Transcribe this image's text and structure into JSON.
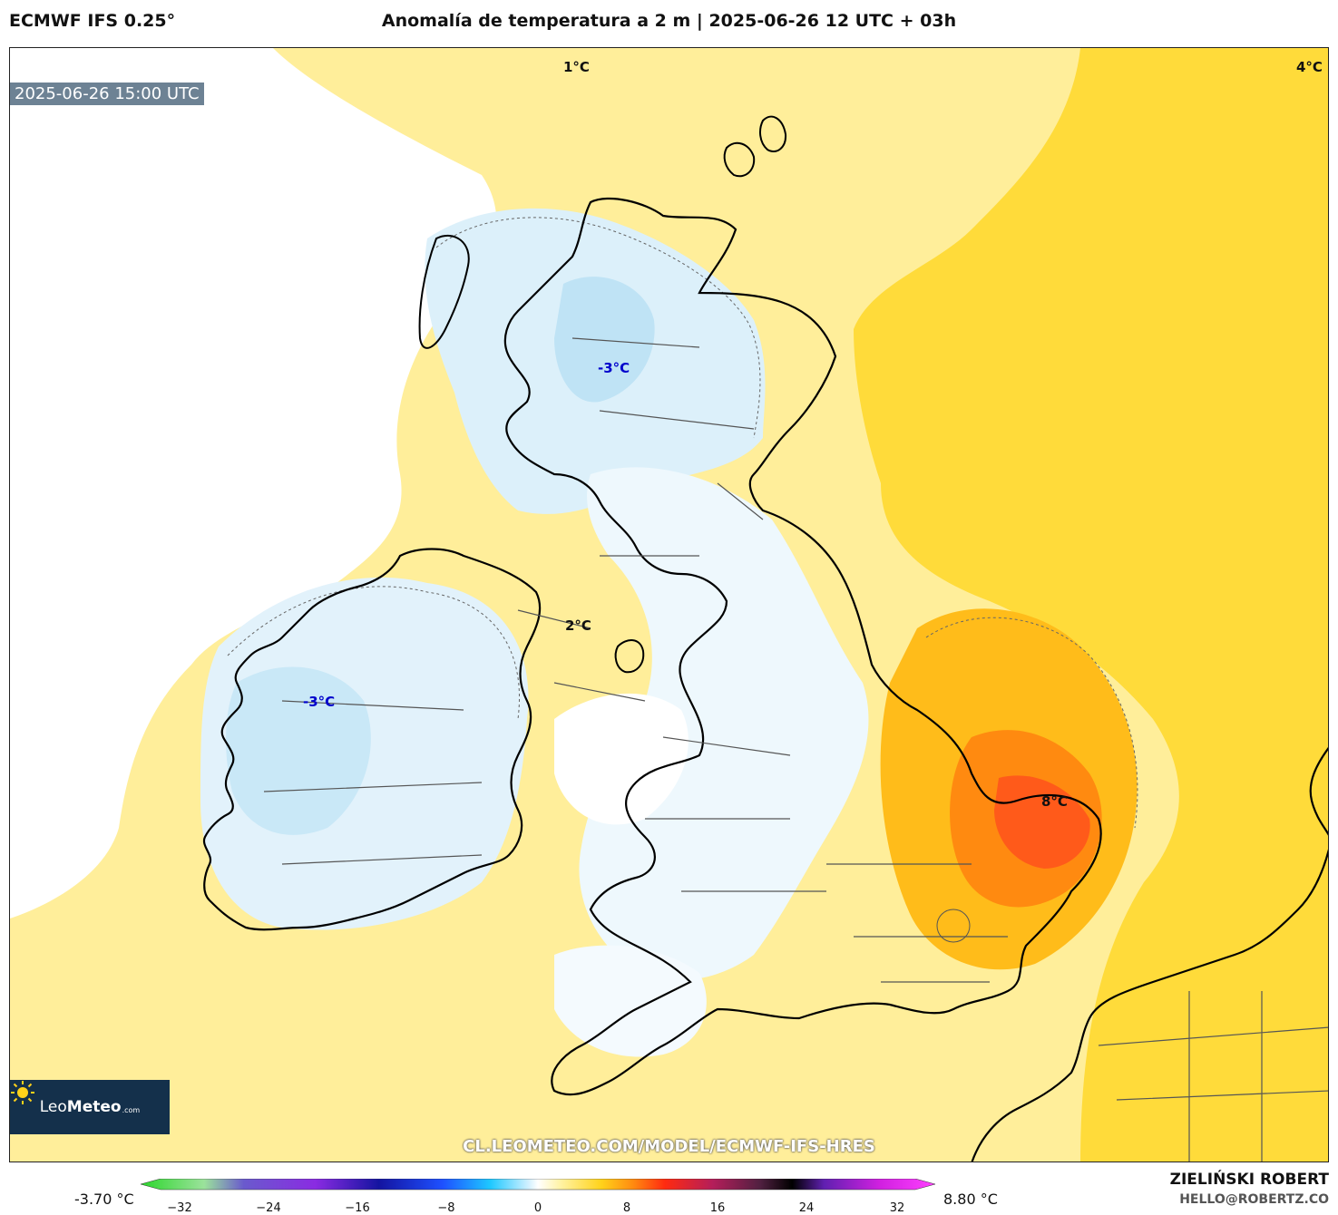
{
  "header": {
    "model": "ECMWF IFS 0.25°",
    "title": "Anomalía de temperatura a 2 m | 2025-06-26 12 UTC + 03h"
  },
  "map": {
    "valid_time": "2025-06-26 15:00 UTC",
    "labels": [
      "1°C",
      "4°C",
      "-3°C",
      "2°C",
      "-3°C",
      "8°C"
    ],
    "url": "CL.LEOMETEO.COM/MODEL/ECMWF-IFS-HRES",
    "colors": {
      "cold": "#d5ecf8",
      "neutral": "#ffffff",
      "warm_light": "#fff2a8",
      "warm": "#ffdd3a",
      "orange": "#ffb000",
      "red": "#ff5a1a",
      "coast": "#000000",
      "borders": "#555555"
    }
  },
  "logo": {
    "brand_light": "Leo",
    "brand_bold": "Meteo",
    "domain": ".com",
    "icon": "sun-icon"
  },
  "colorbar": {
    "min_label": "-3.70 °C",
    "max_label": "8.80 °C",
    "ticks": [
      "−32",
      "−24",
      "−16",
      "−8",
      "0",
      "8",
      "16",
      "24",
      "32"
    ]
  },
  "credits": {
    "author": "ZIELIŃSKI ROBERT",
    "email": "HELLO@ROBERTZ.CO"
  }
}
